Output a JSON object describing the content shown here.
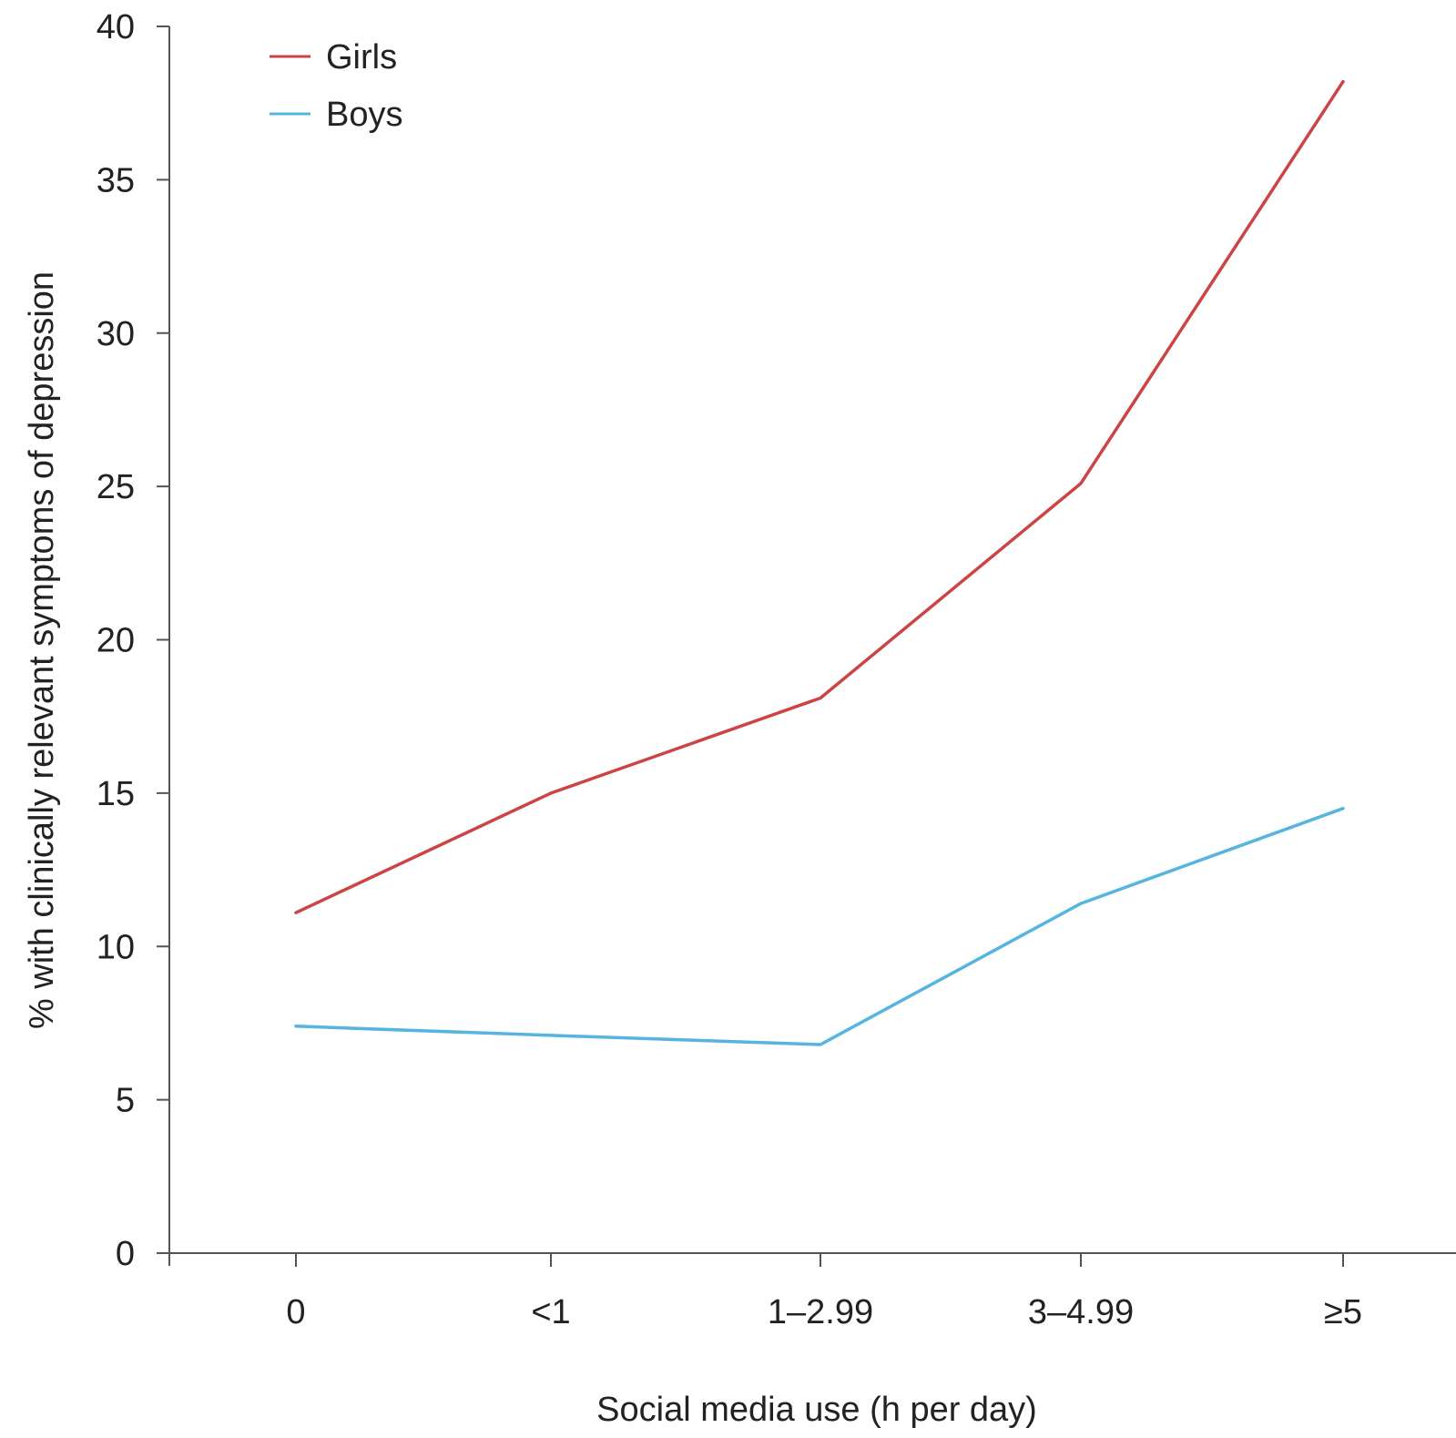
{
  "chart_data": {
    "type": "line",
    "title": "",
    "xlabel": "Social media use (h per day)",
    "ylabel": "% with clinically relevant symptoms of depression",
    "categories": [
      "0",
      "<1",
      "1–2.99",
      "3–4.99",
      "≥5"
    ],
    "ylim": [
      0,
      40
    ],
    "yticks": [
      0,
      5,
      10,
      15,
      20,
      25,
      30,
      35,
      40
    ],
    "grid": false,
    "legend_position": "top-left",
    "series": [
      {
        "name": "Girls",
        "color": "#cc4444",
        "values": [
          11.1,
          15.0,
          18.1,
          25.1,
          38.2
        ]
      },
      {
        "name": "Boys",
        "color": "#55b4e0",
        "values": [
          7.4,
          7.1,
          6.8,
          11.4,
          14.5
        ]
      }
    ]
  }
}
